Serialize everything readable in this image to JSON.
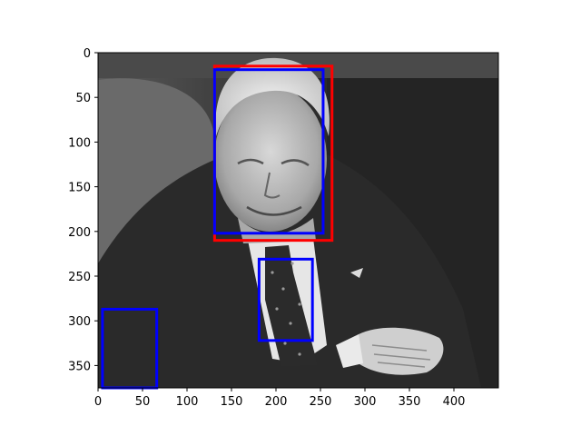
{
  "chart_data": {
    "type": "image",
    "image_size": [
      450,
      375
    ],
    "xlim": [
      0,
      450
    ],
    "ylim": [
      375,
      0
    ],
    "y_inverted": true,
    "x_ticks": [
      0,
      50,
      100,
      150,
      200,
      250,
      300,
      350,
      400
    ],
    "y_ticks": [
      0,
      50,
      100,
      150,
      200,
      250,
      300,
      350
    ],
    "grid": false,
    "image_description": "grayscale photo of elderly man in dark suit, white shirt and patterned tie, hands clasped, leather chair behind",
    "boxes": [
      {
        "color": "#ff0000",
        "x0": 131,
        "y0": 15,
        "x1": 263,
        "y1": 210
      },
      {
        "color": "#0000ff",
        "x0": 131,
        "y0": 19,
        "x1": 253,
        "y1": 202
      },
      {
        "color": "#0000ff",
        "x0": 181,
        "y0": 231,
        "x1": 241,
        "y1": 322
      },
      {
        "color": "#0000ff",
        "x0": 5,
        "y0": 287,
        "x1": 66,
        "y1": 375
      }
    ]
  }
}
